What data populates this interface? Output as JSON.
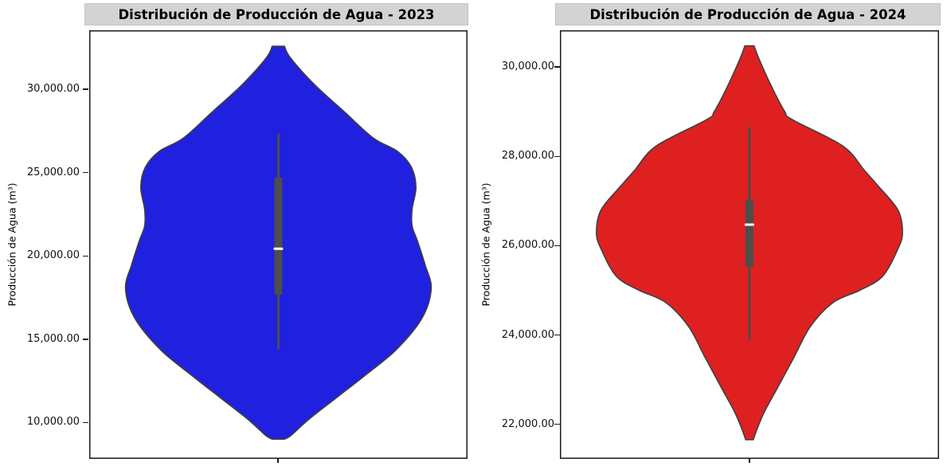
{
  "figure": {
    "background": "#ffffff"
  },
  "chart_data": [
    {
      "type": "violin",
      "title": "Distribución de Producción de Agua - 2023",
      "ylabel": "Producción de Agua (m³)",
      "x_categories": [
        ""
      ],
      "legend": "none",
      "grid": false,
      "ylim": [
        7820,
        33540
      ],
      "yticks": [
        10000,
        15000,
        20000,
        25000,
        30000
      ],
      "ytick_labels": [
        "10,000.00",
        "15,000.00",
        "20,000.00",
        "25,000.00",
        "30,000.00"
      ],
      "fill_color": "#2020df",
      "edge_color": "#3f3f3f",
      "box_color": "#4d4d4d",
      "median_color": "#ffffff",
      "max_width_frac": 0.808,
      "box_stats": {
        "whisker_low": 14380,
        "q1": 17660,
        "median": 20430,
        "q3": 24700,
        "whisker_high": 27340
      },
      "violin_extent": [
        9000,
        32580
      ],
      "density_profile": [
        [
          32580,
          0.04
        ],
        [
          31870,
          0.08
        ],
        [
          30240,
          0.24
        ],
        [
          28660,
          0.43
        ],
        [
          27080,
          0.62
        ],
        [
          26270,
          0.78
        ],
        [
          25320,
          0.87
        ],
        [
          24120,
          0.9
        ],
        [
          22800,
          0.875
        ],
        [
          21800,
          0.875
        ],
        [
          20900,
          0.91
        ],
        [
          19470,
          0.96
        ],
        [
          18040,
          1.0
        ],
        [
          16270,
          0.94
        ],
        [
          14360,
          0.77
        ],
        [
          12780,
          0.56
        ],
        [
          11490,
          0.38
        ],
        [
          10200,
          0.2
        ],
        [
          9240,
          0.085
        ],
        [
          9000,
          0.04
        ]
      ]
    },
    {
      "type": "violin",
      "title": "Distribución de Producción de Agua - 2024",
      "ylabel": "Producción de Agua (m³)",
      "x_categories": [
        ""
      ],
      "legend": "none",
      "grid": false,
      "ylim": [
        21230,
        30820
      ],
      "yticks": [
        22000,
        24000,
        26000,
        28000,
        30000
      ],
      "ytick_labels": [
        "22,000.00",
        "24,000.00",
        "26,000.00",
        "28,000.00",
        "30,000.00"
      ],
      "fill_color": "#df2020",
      "edge_color": "#3f3f3f",
      "box_color": "#4d4d4d",
      "median_color": "#ffffff",
      "max_width_frac": 0.807,
      "box_stats": {
        "whisker_low": 23890,
        "q1": 25530,
        "median": 26470,
        "q3": 27030,
        "whisker_high": 28660
      },
      "violin_extent": [
        21660,
        30470
      ],
      "density_profile": [
        [
          30470,
          0.03
        ],
        [
          30200,
          0.06
        ],
        [
          29590,
          0.14
        ],
        [
          29000,
          0.23
        ],
        [
          28820,
          0.28
        ],
        [
          28230,
          0.61
        ],
        [
          27690,
          0.75
        ],
        [
          27340,
          0.84
        ],
        [
          26800,
          0.97
        ],
        [
          26300,
          1.0
        ],
        [
          25925,
          0.97
        ],
        [
          25315,
          0.87
        ],
        [
          25000,
          0.72
        ],
        [
          24735,
          0.55
        ],
        [
          24200,
          0.4
        ],
        [
          23500,
          0.29
        ],
        [
          22800,
          0.18
        ],
        [
          22300,
          0.1
        ],
        [
          21900,
          0.05
        ],
        [
          21660,
          0.025
        ]
      ]
    }
  ]
}
